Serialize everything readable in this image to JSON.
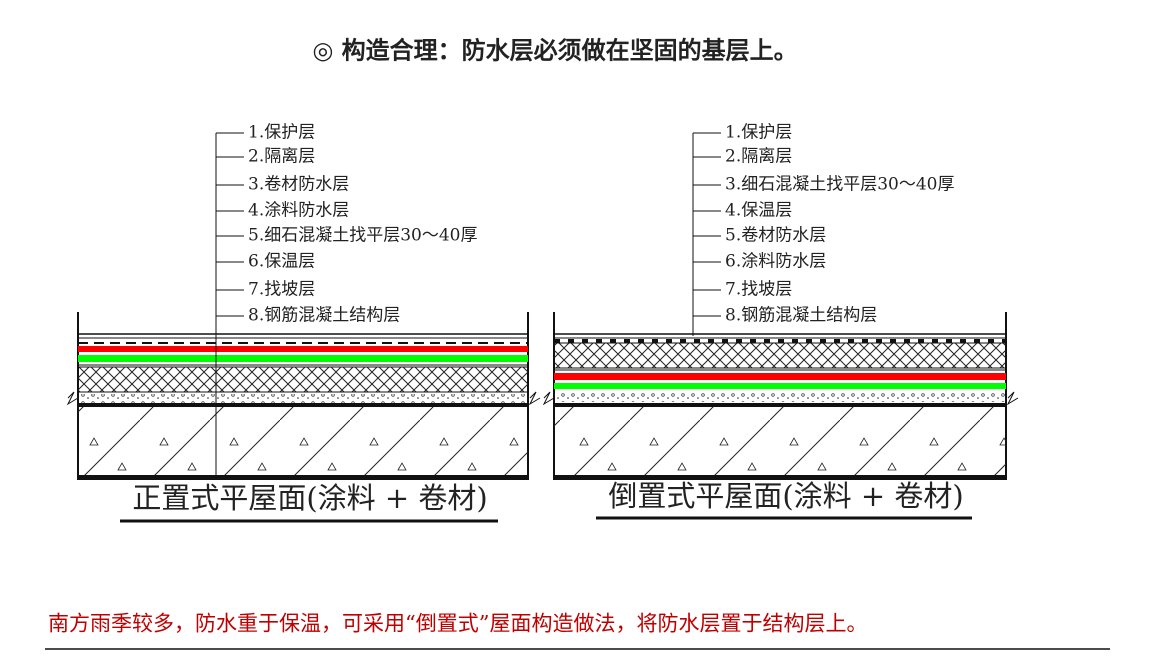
{
  "header": {
    "title": "◎ 构造合理：防水层必须做在坚固的基层上。"
  },
  "diagrams": [
    {
      "layers": [
        "1.保护层",
        "2.隔离层",
        "3.卷材防水层",
        "4.涂料防水层",
        "5.细石混凝土找平层30～40厚",
        "6.保温层",
        "7.找坡层",
        "8.钢筋混凝土结构层"
      ],
      "caption": "正置式平屋面(涂料 + 卷材)"
    },
    {
      "layers": [
        "1.保护层",
        "2.隔离层",
        "3.细石混凝土找平层30～40厚",
        "4.保温层",
        "5.卷材防水层",
        "6.涂料防水层",
        "7.找坡层",
        "8.钢筋混凝土结构层"
      ],
      "caption": "倒置式平屋面(涂料 + 卷材)"
    }
  ],
  "footer": {
    "note": "南方雨季较多，防水重于保温，可采用“倒置式”屋面构造做法，将防水层置于结构层上。"
  }
}
